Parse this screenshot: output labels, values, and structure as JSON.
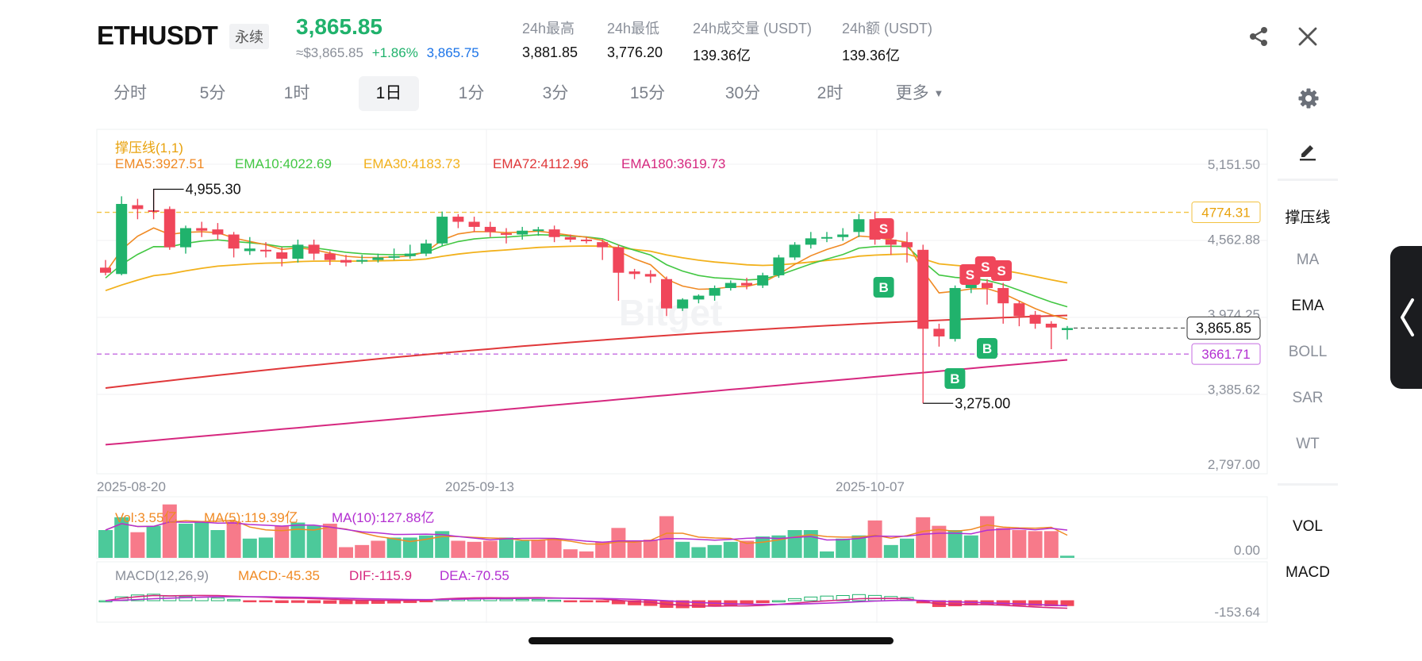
{
  "header": {
    "symbol": "ETHUSDT",
    "badge": "永续",
    "price": "3,865.85",
    "usd_price": "≈$3,865.85",
    "change": "+1.86%",
    "mark_price": "3,865.75",
    "stats": [
      {
        "label": "24h最高",
        "value": "3,881.85"
      },
      {
        "label": "24h最低",
        "value": "3,776.20"
      },
      {
        "label": "24h成交量 (USDT)",
        "value": "139.36亿"
      },
      {
        "label": "24h额 (USDT)",
        "value": "139.36亿"
      }
    ],
    "share_icon": "share-icon",
    "close_icon": "close-icon"
  },
  "timeframes": {
    "tabs": [
      "分时",
      "5分",
      "1时",
      "1日",
      "1分",
      "3分",
      "15分",
      "30分",
      "2时",
      "更多"
    ],
    "active": "1日",
    "more_icon": "caret-down-icon",
    "settings_icon": "gear-icon"
  },
  "indicators": {
    "support_resistance": "撑压线(1,1)",
    "ema5": "EMA5:3927.51",
    "ema10": "EMA10:4022.69",
    "ema30": "EMA30:4183.73",
    "ema72": "EMA72:4112.96",
    "ema180": "EMA180:3619.73",
    "vol": "Vol:3.55亿",
    "vol_ma5": "MA(5):119.39亿",
    "vol_ma10": "MA(10):127.88亿",
    "macd_title": "MACD(12,26,9)",
    "macd": "MACD:-45.35",
    "dif": "DIF:-115.9",
    "dea": "DEA:-70.55"
  },
  "side_panel": {
    "edit_icon": "pencil-icon",
    "items": [
      "撑压线",
      "MA",
      "EMA",
      "BOLL",
      "SAR",
      "WT"
    ],
    "active_items": [
      "撑压线",
      "EMA"
    ],
    "sub_items": [
      "VOL",
      "MACD"
    ],
    "handle_icon": "chevron-left-icon"
  },
  "colors": {
    "up": "#20b26c",
    "down": "#f0465a",
    "ema5": "#f08a24",
    "ema10": "#43c743",
    "ema30": "#f2b11c",
    "ema72": "#e0383a",
    "ema180": "#d6287f",
    "support_line": "#f2c240",
    "resistance_line": "#c46be0",
    "accent_blue": "#1a73e8"
  },
  "chart_data": {
    "type": "candlestick",
    "y_ticks": [
      "5,151.50",
      "4,562.88",
      "3,974.25",
      "3,385.62",
      "2,797.00"
    ],
    "ylim": [
      2797.0,
      5151.5
    ],
    "x_labels": [
      "2025-08-20",
      "2025-09-13",
      "2025-10-07"
    ],
    "current_price_label": "3,865.85",
    "current_price": 3865.85,
    "resistance_label": "4774.31",
    "resistance": 4774.31,
    "support_label": "3661.71",
    "support": 3661.71,
    "high_label": "4,955.30",
    "low_label": "3,275.00",
    "vol_axis_label": "0.00",
    "macd_axis_label": "-153.64",
    "signals": [
      {
        "type": "S",
        "candle": 48
      },
      {
        "type": "B",
        "candle": 48
      },
      {
        "type": "S",
        "candle": 52
      },
      {
        "type": "B",
        "candle": 52
      },
      {
        "type": "S",
        "candle": 54
      },
      {
        "type": "S",
        "candle": 55
      },
      {
        "type": "B",
        "candle": 55
      }
    ],
    "candles": [
      [
        4340,
        4300,
        4400,
        4280
      ],
      [
        4290,
        4840,
        4900,
        4280
      ],
      [
        4830,
        4800,
        4880,
        4720
      ],
      [
        4790,
        4780,
        4955.3,
        4720
      ],
      [
        4800,
        4500,
        4820,
        4480
      ],
      [
        4500,
        4650,
        4670,
        4450
      ],
      [
        4650,
        4630,
        4700,
        4580
      ],
      [
        4640,
        4600,
        4690,
        4560
      ],
      [
        4600,
        4490,
        4620,
        4420
      ],
      [
        4470,
        4490,
        4580,
        4440
      ],
      [
        4480,
        4470,
        4540,
        4420
      ],
      [
        4460,
        4410,
        4500,
        4350
      ],
      [
        4410,
        4520,
        4560,
        4380
      ],
      [
        4520,
        4450,
        4560,
        4400
      ],
      [
        4450,
        4400,
        4470,
        4360
      ],
      [
        4400,
        4380,
        4440,
        4350
      ],
      [
        4390,
        4400,
        4440,
        4370
      ],
      [
        4400,
        4420,
        4450,
        4380
      ],
      [
        4420,
        4430,
        4490,
        4400
      ],
      [
        4430,
        4450,
        4520,
        4410
      ],
      [
        4450,
        4530,
        4560,
        4430
      ],
      [
        4530,
        4740,
        4780,
        4510
      ],
      [
        4740,
        4700,
        4760,
        4650
      ],
      [
        4700,
        4660,
        4740,
        4620
      ],
      [
        4660,
        4620,
        4700,
        4580
      ],
      [
        4610,
        4600,
        4650,
        4530
      ],
      [
        4600,
        4630,
        4660,
        4560
      ],
      [
        4630,
        4640,
        4660,
        4590
      ],
      [
        4640,
        4580,
        4670,
        4540
      ],
      [
        4580,
        4560,
        4600,
        4540
      ],
      [
        4560,
        4550,
        4580,
        4530
      ],
      [
        4540,
        4500,
        4560,
        4400
      ],
      [
        4500,
        4300,
        4520,
        4080
      ],
      [
        4310,
        4290,
        4330,
        4250
      ],
      [
        4290,
        4270,
        4320,
        4220
      ],
      [
        4250,
        4020,
        4270,
        3960
      ],
      [
        4020,
        4090,
        4100,
        4000
      ],
      [
        4090,
        4120,
        4130,
        4060
      ],
      [
        4120,
        4180,
        4200,
        4080
      ],
      [
        4180,
        4220,
        4240,
        4160
      ],
      [
        4220,
        4200,
        4260,
        4170
      ],
      [
        4200,
        4280,
        4300,
        4180
      ],
      [
        4280,
        4420,
        4440,
        4260
      ],
      [
        4420,
        4520,
        4540,
        4400
      ],
      [
        4520,
        4570,
        4620,
        4490
      ],
      [
        4570,
        4580,
        4620,
        4540
      ],
      [
        4580,
        4600,
        4650,
        4550
      ],
      [
        4620,
        4720,
        4760,
        4580
      ],
      [
        4720,
        4560,
        4780,
        4520
      ],
      [
        4560,
        4520,
        4580,
        4440
      ],
      [
        4540,
        4500,
        4620,
        4380
      ],
      [
        4480,
        3860,
        4520,
        3275
      ],
      [
        3860,
        3800,
        3900,
        3720
      ],
      [
        3780,
        4180,
        4200,
        3760
      ],
      [
        4180,
        4210,
        4230,
        4140
      ],
      [
        4220,
        4180,
        4250,
        4050
      ],
      [
        4180,
        4060,
        4220,
        3900
      ],
      [
        4060,
        3960,
        4080,
        3880
      ],
      [
        3970,
        3900,
        4000,
        3860
      ],
      [
        3900,
        3870,
        3920,
        3700
      ],
      [
        3850,
        3865.85,
        3881.85,
        3776.2
      ]
    ],
    "volumes": [
      [
        2.6,
        "up"
      ],
      [
        3.8,
        "up"
      ],
      [
        2.4,
        "down"
      ],
      [
        3.0,
        "up"
      ],
      [
        5.0,
        "down"
      ],
      [
        3.2,
        "up"
      ],
      [
        3.4,
        "up"
      ],
      [
        2.6,
        "up"
      ],
      [
        3.4,
        "down"
      ],
      [
        1.8,
        "up"
      ],
      [
        1.9,
        "up"
      ],
      [
        3.0,
        "down"
      ],
      [
        3.3,
        "up"
      ],
      [
        3.0,
        "up"
      ],
      [
        3.2,
        "down"
      ],
      [
        1.0,
        "down"
      ],
      [
        1.2,
        "down"
      ],
      [
        1.6,
        "down"
      ],
      [
        1.9,
        "up"
      ],
      [
        1.9,
        "up"
      ],
      [
        2.1,
        "up"
      ],
      [
        2.5,
        "up"
      ],
      [
        1.6,
        "down"
      ],
      [
        1.5,
        "down"
      ],
      [
        1.6,
        "down"
      ],
      [
        1.9,
        "up"
      ],
      [
        1.6,
        "up"
      ],
      [
        1.7,
        "down"
      ],
      [
        1.8,
        "down"
      ],
      [
        0.8,
        "down"
      ],
      [
        0.6,
        "down"
      ],
      [
        1.5,
        "down"
      ],
      [
        2.8,
        "down"
      ],
      [
        1.6,
        "down"
      ],
      [
        1.7,
        "down"
      ],
      [
        3.9,
        "down"
      ],
      [
        1.5,
        "up"
      ],
      [
        1.0,
        "up"
      ],
      [
        1.2,
        "up"
      ],
      [
        1.5,
        "up"
      ],
      [
        1.6,
        "down"
      ],
      [
        2.0,
        "up"
      ],
      [
        2.1,
        "up"
      ],
      [
        2.6,
        "up"
      ],
      [
        2.6,
        "up"
      ],
      [
        0.6,
        "up"
      ],
      [
        1.8,
        "up"
      ],
      [
        2.1,
        "up"
      ],
      [
        3.5,
        "down"
      ],
      [
        1.2,
        "up"
      ],
      [
        1.8,
        "up"
      ],
      [
        3.8,
        "down"
      ],
      [
        3.0,
        "down"
      ],
      [
        2.6,
        "up"
      ],
      [
        2.1,
        "up"
      ],
      [
        3.9,
        "down"
      ],
      [
        2.8,
        "down"
      ],
      [
        2.6,
        "down"
      ],
      [
        2.5,
        "down"
      ],
      [
        2.5,
        "down"
      ],
      [
        0.2,
        "up"
      ]
    ]
  },
  "watermark": "Bitget"
}
